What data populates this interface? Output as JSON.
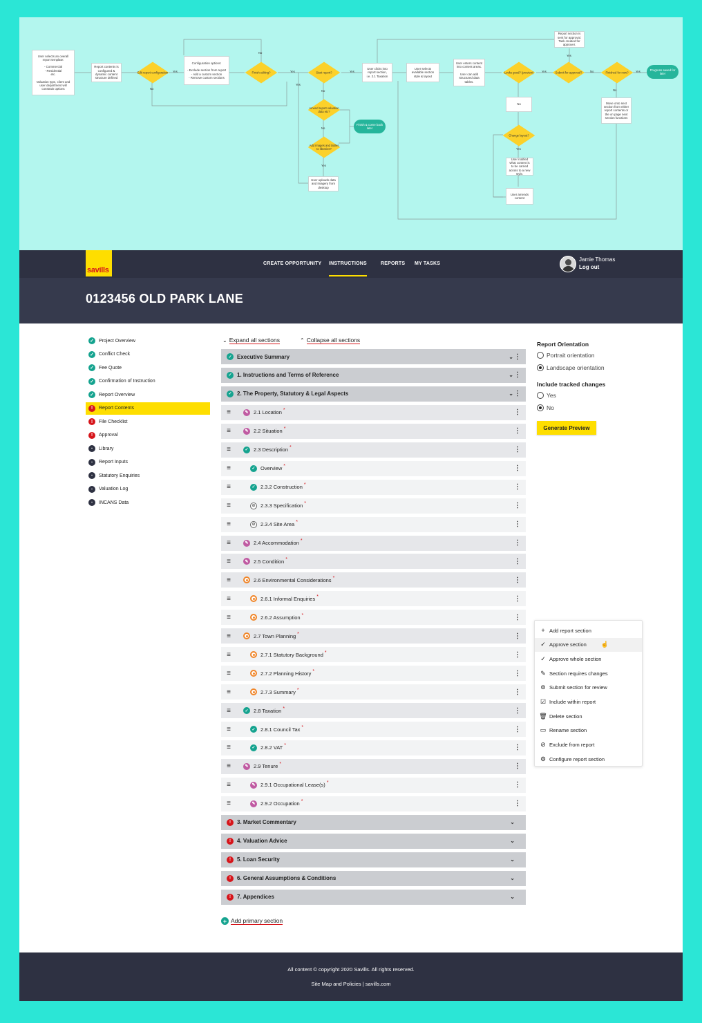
{
  "flowchart": {
    "nodes": {
      "start": "User selects an overall report template:\n\n- Commercial\n- Residential\netc.\n\nValuation type, client and user department will constrain options",
      "configured": "Report contents is configured & dynamic content structure defined",
      "edit_config": "Edit report configuration",
      "config_options": "Configuration options:\n\n- Exclude section from report\n- Add a custom section\n- Remove custom sections",
      "finish_editing": "Finish editing?",
      "start_report": "Start report?",
      "clicks_into": "User clicks into report section,\ni.e. 2.1 Taxation",
      "selects_style": "User selects available section style & layout",
      "enters_content": "User enters content into content areas.\n\nUser can add structured data tables.",
      "looks_good": "Looks good? (preview)",
      "submit_approval": "Submit for approval?",
      "finished_now": "Finished for now?",
      "progress_saved": "Progress saved for later",
      "sent_for_approval": "Report section is sent for approval. Task created for approver.",
      "move_onto": "Move onto next section from either report contents or the on page next section functions",
      "amend_report": "Amend report valuation data etc?",
      "finish_later": "Finish & come back later",
      "add_images": "Add images and tables to libraries?",
      "uploads": "User uploads data and imagery from desktop",
      "no_box": "No",
      "change_layout": "Change layout?",
      "notified": "User notified what content is to be carried across to a new style.",
      "amends": "User amends content"
    },
    "labels": {
      "yes": "Yes",
      "no": "No"
    }
  },
  "header": {
    "logo": "savills",
    "nav": [
      "CREATE OPPORTUNITY",
      "INSTRUCTIONS",
      "REPORTS",
      "MY TASKS"
    ],
    "active_nav": "INSTRUCTIONS",
    "user_name": "Jamie Thomas",
    "logout": "Log out"
  },
  "page_title": "0123456 OLD PARK LANE",
  "sidebar": {
    "items": [
      {
        "label": "Project Overview",
        "status": "ok"
      },
      {
        "label": "Conflict Check",
        "status": "ok"
      },
      {
        "label": "Fee Quote",
        "status": "ok"
      },
      {
        "label": "Confirmation of Instruction",
        "status": "ok"
      },
      {
        "label": "Report Overview",
        "status": "ok"
      },
      {
        "label": "Report Contents",
        "status": "err",
        "active": true
      },
      {
        "label": "File Checklist",
        "status": "err"
      },
      {
        "label": "Approval",
        "status": "err"
      },
      {
        "label": "Library",
        "status": "dark",
        "icon": "library-icon"
      },
      {
        "label": "Report Inputs",
        "status": "dark",
        "icon": "inputs-icon"
      },
      {
        "label": "Statutory Enquiries",
        "status": "dark",
        "icon": "search-icon"
      },
      {
        "label": "Valuation Log",
        "status": "dark",
        "icon": "log-icon"
      },
      {
        "label": "INCANS Data",
        "status": "dark",
        "icon": "chart-icon"
      }
    ]
  },
  "toggles": {
    "expand": "Expand all sections",
    "collapse": "Collapse all sections",
    "expand_glyph": "⌄",
    "collapse_glyph": "⌃"
  },
  "sections": [
    {
      "label": "Executive Summary",
      "level": 0,
      "status": "ok",
      "chevron": true,
      "dots": true
    },
    {
      "label": "1. Instructions and Terms of Reference",
      "level": 0,
      "status": "ok",
      "chevron": true,
      "dots": true
    },
    {
      "label": "2. The Property, Statutory & Legal Aspects",
      "level": 0,
      "status": "ok",
      "chevron": true,
      "dots": true
    },
    {
      "label": "2.1 Location",
      "level": 1,
      "status": "pen",
      "req": true
    },
    {
      "label": "2.2 Situation",
      "level": 1,
      "status": "pen",
      "req": true
    },
    {
      "label": "2.3 Description",
      "level": 1,
      "status": "ok",
      "req": true
    },
    {
      "label": "Overview",
      "level": 2,
      "status": "ok",
      "req": true
    },
    {
      "label": "2.3.2 Construction",
      "level": 2,
      "status": "ok",
      "req": true
    },
    {
      "label": "2.3.3 Specification",
      "level": 2,
      "status": "na",
      "req": true
    },
    {
      "label": "2.3.4 Site Area",
      "level": 2,
      "status": "na",
      "req": true
    },
    {
      "label": "2.4 Accommodation",
      "level": 1,
      "status": "pen",
      "req": true
    },
    {
      "label": "2.5 Condition",
      "level": 1,
      "status": "pen",
      "req": true
    },
    {
      "label": "2.6 Environmental Considerations",
      "level": 1,
      "status": "warn",
      "req": true
    },
    {
      "label": "2.6.1 Informal Enquiries",
      "level": 2,
      "status": "warn",
      "req": true
    },
    {
      "label": "2.6.2 Assumption",
      "level": 2,
      "status": "warn",
      "req": true
    },
    {
      "label": "2.7 Town Planning",
      "level": 1,
      "status": "warn",
      "req": true
    },
    {
      "label": "2.7.1 Statutory Background",
      "level": 2,
      "status": "warn",
      "req": true
    },
    {
      "label": "2.7.2 Planning History",
      "level": 2,
      "status": "warn",
      "req": true
    },
    {
      "label": "2.7.3 Summary",
      "level": 2,
      "status": "warn",
      "req": true
    },
    {
      "label": "2.8 Taxation",
      "level": 1,
      "status": "ok",
      "req": true
    },
    {
      "label": "2.8.1 Council Tax",
      "level": 2,
      "status": "ok",
      "req": true
    },
    {
      "label": "2.8.2 VAT",
      "level": 2,
      "status": "ok",
      "req": true
    },
    {
      "label": "2.9 Tenure",
      "level": 1,
      "status": "pen",
      "req": true
    },
    {
      "label": "2.9.1 Occupational Lease(s)",
      "level": 2,
      "status": "pen",
      "req": true
    },
    {
      "label": "2.9.2 Occupation",
      "level": 2,
      "status": "pen",
      "req": true
    },
    {
      "label": "3. Market Commentary",
      "level": 0,
      "status": "err",
      "chevron": true
    },
    {
      "label": "4. Valuation Advice",
      "level": 0,
      "status": "err",
      "chevron": true
    },
    {
      "label": "5. Loan Security",
      "level": 0,
      "status": "err",
      "chevron": true
    },
    {
      "label": "6. General Assumptions & Conditions",
      "level": 0,
      "status": "err",
      "chevron": true
    },
    {
      "label": "7. Appendices",
      "level": 0,
      "status": "err",
      "chevron": true
    }
  ],
  "glyphs": {
    "drag": "≡",
    "chevron": "⌄",
    "dots": "⋮",
    "required": "*",
    "ok": "✓",
    "err": "!",
    "pen": "✎",
    "na": "⊘"
  },
  "add_primary": "Add primary section",
  "add_primary_glyph": "+",
  "right_panel": {
    "orientation_title": "Report Orientation",
    "portrait": "Portrait orientation",
    "landscape": "Landscape orientation",
    "orientation_selected": "landscape",
    "tracked_title": "Include tracked changes",
    "yes": "Yes",
    "no": "No",
    "tracked_selected": "no",
    "generate": "Generate Preview"
  },
  "context_menu": {
    "items": [
      {
        "label": "Add report section",
        "icon": "plus-icon",
        "glyph": "+"
      },
      {
        "label": "Approve section",
        "icon": "check-icon",
        "glyph": "✓",
        "hover": true
      },
      {
        "label": "Approve whole section",
        "icon": "check-icon",
        "glyph": "✓"
      },
      {
        "label": "Section requires changes",
        "icon": "pencil-icon",
        "glyph": "✎"
      },
      {
        "label": "Submit section for review",
        "icon": "submit-icon",
        "glyph": "⊜"
      },
      {
        "label": "Include within report",
        "icon": "include-icon",
        "glyph": "☑"
      },
      {
        "label": "Delete section",
        "icon": "trash-icon",
        "glyph": "🗑"
      },
      {
        "label": "Rename section",
        "icon": "rename-icon",
        "glyph": "▭"
      },
      {
        "label": "Exclude from report",
        "icon": "exclude-icon",
        "glyph": "⊘"
      },
      {
        "label": "Configure report section",
        "icon": "gear-icon",
        "glyph": "⚙"
      }
    ],
    "cursor_glyph": "☝"
  },
  "footer": {
    "copyright": "All content © copyright 2020 Savills. All rights reserved.",
    "links": "Site Map and Policies | savills.com"
  },
  "colors": {
    "accent": "#fede00",
    "navy": "#2e3142",
    "teal": "#15a38f",
    "red": "#d6151b",
    "magenta": "#c05aa2",
    "orange": "#f0862a"
  }
}
